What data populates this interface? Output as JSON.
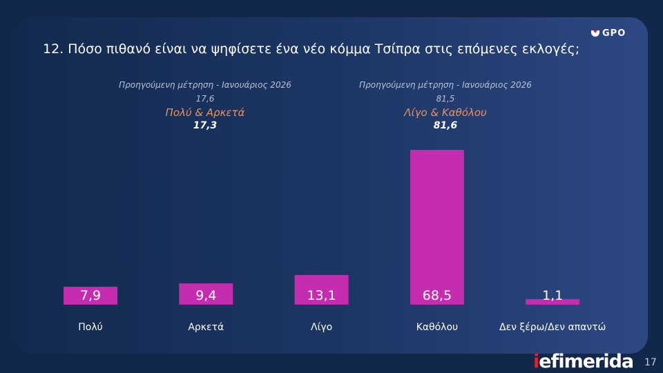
{
  "title": "12. Πόσο πιθανό είναι να ψηφίσετε ένα νέο κόμμα Τσίπρα στις επόμενες εκλογές;",
  "logo": "GPO",
  "groups": [
    {
      "previous_label": "Προηγούμενη μέτρηση - Ιανουάριος 2026",
      "previous_value": "17,6",
      "label": "Πολύ & Αρκετά",
      "value": "17,3"
    },
    {
      "previous_label": "Προηγούμενη μέτρηση - Ιανουάριος 2026",
      "previous_value": "81,5",
      "label": "Λίγο & Καθόλου",
      "value": "81,6"
    }
  ],
  "chart_data": {
    "type": "bar",
    "categories": [
      "Πολύ",
      "Αρκετά",
      "Λίγο",
      "Καθόλου",
      "Δεν ξέρω/Δεν απαντώ"
    ],
    "values": [
      7.9,
      9.4,
      13.1,
      68.5,
      1.1
    ],
    "value_labels": [
      "7,9",
      "9,4",
      "13,1",
      "68,5",
      "1,1"
    ],
    "bar_color": "#c42db0",
    "grid": false
  },
  "footer": {
    "brand_i": "i",
    "brand_rest": "efimerida",
    "page": "17"
  }
}
